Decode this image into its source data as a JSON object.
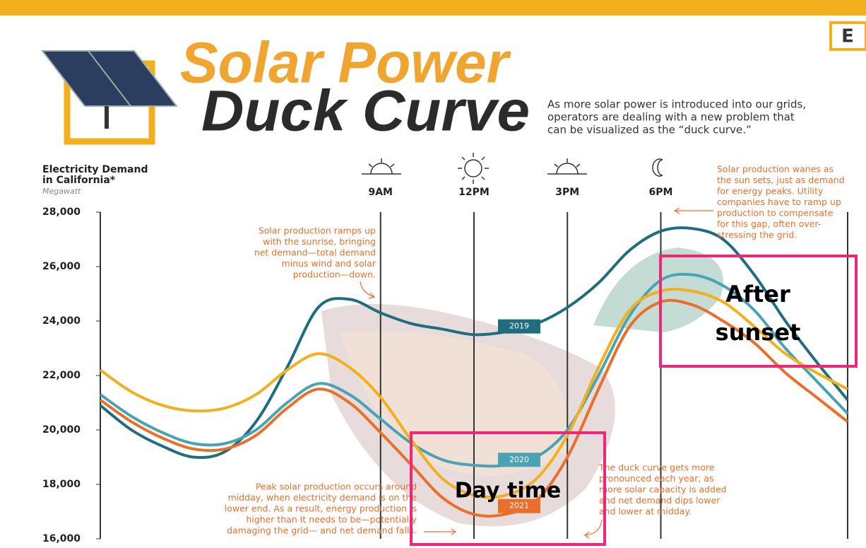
{
  "header": {
    "title_line1": "Solar Power",
    "title_line2": "Duck Curve",
    "subtitle": [
      "As more solar power is introduced into our grids,",
      "operators are dealing with a new problem that",
      "can be visualized as the “duck curve.”"
    ],
    "logo": "E"
  },
  "chart_data": {
    "type": "line",
    "ylabel": [
      "Electricity Demand",
      "in California*"
    ],
    "yunit": "Megawatt",
    "xlim": [
      0,
      24
    ],
    "xticks": [
      {
        "value": 9,
        "label": "9AM"
      },
      {
        "value": 12,
        "label": "12PM"
      },
      {
        "value": 15,
        "label": "3PM"
      },
      {
        "value": 18,
        "label": "6PM"
      }
    ],
    "ylim": [
      16000,
      28000
    ],
    "yticks": [
      {
        "value": 16000,
        "label": "16,000"
      },
      {
        "value": 18000,
        "label": "18,000"
      },
      {
        "value": 20000,
        "label": "20,000"
      },
      {
        "value": 22000,
        "label": "22,000"
      },
      {
        "value": 24000,
        "label": "24,000"
      },
      {
        "value": 26000,
        "label": "26,000"
      },
      {
        "value": 28000,
        "label": "28,000"
      }
    ],
    "x": [
      0,
      1,
      2,
      3,
      4,
      5,
      6,
      7,
      8,
      9,
      10,
      11,
      12,
      13,
      14,
      15,
      16,
      17,
      18,
      19,
      20,
      21,
      22,
      23,
      24
    ],
    "series": [
      {
        "name": "2019",
        "color": "#1f6e80",
        "values": [
          20900,
          20000,
          19400,
          19000,
          19200,
          20300,
          22300,
          24500,
          24800,
          24300,
          23900,
          23700,
          23500,
          23600,
          23900,
          24500,
          25400,
          26600,
          27300,
          27400,
          27000,
          25700,
          24000,
          22500,
          21100
        ]
      },
      {
        "name": "2020",
        "color": "#4aa3b5",
        "values": [
          21300,
          20500,
          19900,
          19500,
          19500,
          20000,
          21000,
          21700,
          21300,
          20400,
          19500,
          18900,
          18700,
          18700,
          19000,
          20000,
          22000,
          24200,
          25500,
          25700,
          25300,
          24400,
          23000,
          21800,
          20600
        ]
      },
      {
        "color": "#f2b01e",
        "values": [
          22200,
          21400,
          20900,
          20700,
          20800,
          21300,
          22200,
          22800,
          22300,
          21200,
          19600,
          18200,
          17600,
          17600,
          18200,
          19800,
          22300,
          24400,
          25100,
          25100,
          24700,
          23800,
          22800,
          22100,
          21500
        ]
      },
      {
        "name": "2021",
        "color": "#e8702a",
        "values": [
          21100,
          20300,
          19700,
          19300,
          19300,
          19800,
          20800,
          21500,
          21000,
          19900,
          18700,
          17500,
          16900,
          16900,
          17400,
          19000,
          21500,
          23800,
          24700,
          24600,
          24000,
          23200,
          22100,
          21200,
          20300
        ]
      }
    ],
    "annotations": [
      [
        "Solar production wanes as",
        "the sun sets, just as demand",
        "for energy peaks. Utility",
        "companies have to ramp up",
        "production to compensate",
        "for this gap, often over-",
        "stressing the grid."
      ],
      [
        "Solar production ramps up",
        "with the sunrise, bringing",
        "net demand—total demand",
        "minus wind and solar",
        "production—down."
      ],
      [
        "Peak solar production occurs around",
        "midday, when electricity demand is on the",
        "lower end. As a result, energy production is",
        "higher than it needs to be—potentially",
        "damaging the grid— and net demand falls."
      ],
      [
        "The duck curve gets more",
        "pronounced each year, as",
        "more solar capacity is added",
        "and net demand dips lower",
        "and lower at midday."
      ]
    ],
    "highlights": [
      [
        "Day time"
      ],
      [
        "After",
        "sunset"
      ]
    ]
  }
}
